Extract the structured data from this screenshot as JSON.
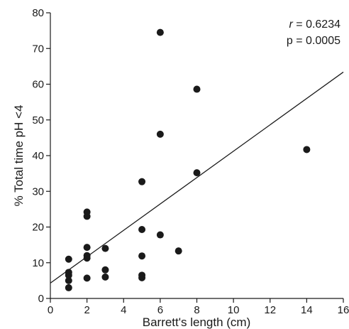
{
  "chart_data": {
    "type": "scatter",
    "title": "",
    "xlabel": "Barrett's length (cm)",
    "ylabel": "% Total time pH <4",
    "xlim": [
      0,
      16
    ],
    "ylim": [
      0,
      80
    ],
    "xticks": [
      0,
      2,
      4,
      6,
      8,
      10,
      12,
      14,
      16
    ],
    "yticks": [
      0,
      10,
      20,
      30,
      40,
      50,
      60,
      70,
      80
    ],
    "grid": false,
    "legend": "none",
    "point_color": "#1a1a1a",
    "line_color": "#1a1a1a",
    "points": [
      {
        "x": 1,
        "y": 11.0
      },
      {
        "x": 1,
        "y": 7.3
      },
      {
        "x": 1,
        "y": 6.5
      },
      {
        "x": 1,
        "y": 5.0
      },
      {
        "x": 1,
        "y": 3.0
      },
      {
        "x": 2,
        "y": 24.2
      },
      {
        "x": 2,
        "y": 23.0
      },
      {
        "x": 2,
        "y": 14.3
      },
      {
        "x": 2,
        "y": 12.0
      },
      {
        "x": 2,
        "y": 11.3
      },
      {
        "x": 2,
        "y": 5.7
      },
      {
        "x": 3,
        "y": 14.0
      },
      {
        "x": 3,
        "y": 8.0
      },
      {
        "x": 3,
        "y": 6.0
      },
      {
        "x": 5,
        "y": 32.7
      },
      {
        "x": 5,
        "y": 19.3
      },
      {
        "x": 5,
        "y": 11.9
      },
      {
        "x": 5,
        "y": 6.5
      },
      {
        "x": 5,
        "y": 5.8
      },
      {
        "x": 6,
        "y": 74.5
      },
      {
        "x": 6,
        "y": 46.0
      },
      {
        "x": 6,
        "y": 17.8
      },
      {
        "x": 7,
        "y": 13.3
      },
      {
        "x": 8,
        "y": 58.6
      },
      {
        "x": 8,
        "y": 35.2
      },
      {
        "x": 14,
        "y": 41.7
      }
    ],
    "regression_line": {
      "x": [
        0,
        16
      ],
      "y": [
        4.3,
        63.4
      ]
    },
    "annotations": {
      "r_symbol": "r",
      "r_value": " = 0.6234",
      "p_text": "p = 0.0005"
    }
  }
}
